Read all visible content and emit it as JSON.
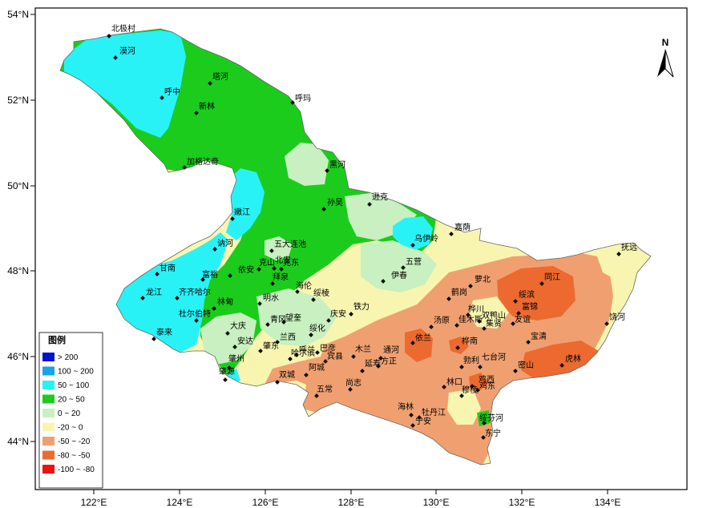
{
  "axes": {
    "lat_ticks": [
      "54°N",
      "52°N",
      "50°N",
      "48°N",
      "46°N",
      "44°N"
    ],
    "lon_ticks": [
      "122°E",
      "124°E",
      "126°E",
      "128°E",
      "130°E",
      "132°E",
      "134°E"
    ]
  },
  "north_arrow": {
    "label": "N",
    "icon": "north-arrow-icon"
  },
  "legend": {
    "title": "图例",
    "items": [
      {
        "label": "> 200",
        "color": "#0014d2"
      },
      {
        "label": "100 ~ 200",
        "color": "#14a5eb"
      },
      {
        "label": "50 ~ 100",
        "color": "#29f2f7"
      },
      {
        "label": "20 ~ 50",
        "color": "#1ccc1c"
      },
      {
        "label": "0 ~ 20",
        "color": "#c8f0c0"
      },
      {
        "label": "-20 ~ 0",
        "color": "#f8f5b0"
      },
      {
        "label": "-50 ~ -20",
        "color": "#f0a070"
      },
      {
        "label": "-80 ~ -50",
        "color": "#ec6a30"
      },
      {
        "label": "-100 ~ -80",
        "color": "#f01010"
      }
    ]
  },
  "stations": [
    "北极村",
    "漠河",
    "塔河",
    "呼中",
    "新林",
    "呼玛",
    "加格达奇",
    "黑河",
    "孙吴",
    "逊克",
    "嫩江",
    "嘉荫",
    "乌伊岭",
    "五营",
    "五大连池",
    "北安",
    "讷河",
    "甘南",
    "克山",
    "克东",
    "伊春",
    "依安",
    "富裕",
    "拜泉",
    "明水",
    "萝北",
    "绥滨",
    "同江",
    "抚远",
    "龙江",
    "齐齐哈尔",
    "林甸",
    "杜尔伯特",
    "海伦",
    "绥棱",
    "庆安",
    "铁力",
    "鹤岗",
    "汤原",
    "佳木斯",
    "桦川",
    "集贤",
    "富锦",
    "友谊",
    "饶河",
    "泰来",
    "大庆",
    "安达",
    "青冈",
    "望奎",
    "兰西",
    "绥化",
    "呼兰",
    "巴彦",
    "木兰",
    "通河",
    "依兰",
    "桦南",
    "宝清",
    "双鸭山",
    "肇东",
    "哈尔滨",
    "宾县",
    "方正",
    "勃利",
    "七台河",
    "肇州",
    "肇源",
    "双城",
    "阿城",
    "延寿",
    "尚志",
    "林口",
    "鸡西",
    "密山",
    "虎林",
    "鸡东",
    "五常",
    "海林",
    "牡丹江",
    "穆棱",
    "宁安",
    "绥芬河",
    "东宁"
  ]
}
